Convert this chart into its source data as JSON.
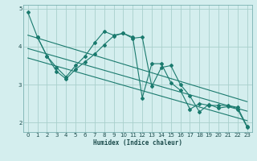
{
  "bg_color": "#d4eeee",
  "line_color": "#1a7a6e",
  "grid_color": "#a8d0cc",
  "xlabel": "Humidex (Indice chaleur)",
  "xlim": [
    -0.5,
    23.5
  ],
  "ylim": [
    1.75,
    5.1
  ],
  "yticks": [
    2,
    3,
    4,
    5
  ],
  "xticks": [
    0,
    1,
    2,
    3,
    4,
    5,
    6,
    7,
    8,
    9,
    10,
    11,
    12,
    13,
    14,
    15,
    16,
    17,
    18,
    19,
    20,
    21,
    22,
    23
  ],
  "series": [
    {
      "x": [
        0,
        1,
        2,
        3,
        4,
        5,
        6,
        7,
        8,
        9,
        10,
        11,
        12,
        13,
        14,
        15,
        16,
        17,
        18,
        19,
        20,
        21,
        22,
        23
      ],
      "y": [
        4.9,
        4.25,
        3.75,
        3.45,
        3.2,
        3.5,
        3.75,
        4.1,
        4.4,
        4.3,
        4.35,
        4.25,
        2.65,
        3.55,
        3.55,
        3.05,
        2.85,
        2.35,
        2.5,
        2.45,
        2.45,
        2.45,
        2.4,
        1.9
      ],
      "has_markers": true
    },
    {
      "x": [
        1,
        2,
        3,
        4,
        5,
        6,
        7,
        8,
        9,
        10,
        11,
        12,
        13,
        14,
        15,
        16,
        17,
        18,
        19,
        20,
        21,
        22,
        23
      ],
      "y": [
        4.25,
        3.75,
        3.35,
        3.15,
        3.4,
        3.6,
        3.8,
        4.05,
        4.28,
        4.35,
        4.22,
        4.25,
        2.95,
        3.45,
        3.5,
        3.0,
        2.7,
        2.28,
        2.48,
        2.38,
        2.42,
        2.35,
        1.88
      ],
      "has_markers": true
    },
    {
      "x": [
        0,
        23
      ],
      "y": [
        4.3,
        2.55
      ],
      "has_markers": false
    },
    {
      "x": [
        0,
        23
      ],
      "y": [
        3.95,
        2.3
      ],
      "has_markers": false
    },
    {
      "x": [
        0,
        23
      ],
      "y": [
        3.7,
        2.05
      ],
      "has_markers": false
    }
  ]
}
